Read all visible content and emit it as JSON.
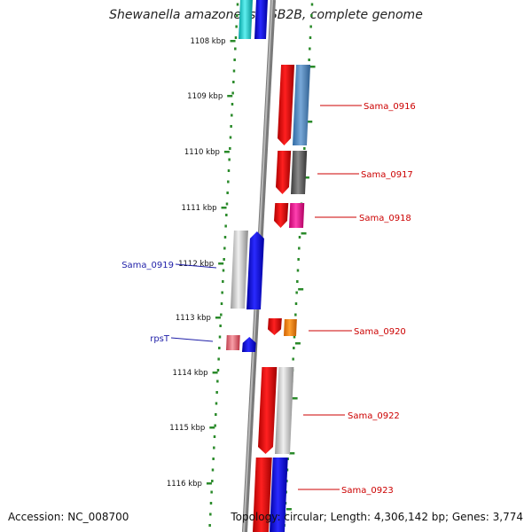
{
  "title": "Shewanella amazonensis SB2B, complete genome",
  "footer": {
    "accession": "Accession: NC_008700",
    "topology": "Topology: circular; Length: 4,306,142 bp; Genes: 3,774"
  },
  "chart_data": {
    "type": "genome-map",
    "scale_labels": [
      "1108 kbp",
      "1109 kbp",
      "1110 kbp",
      "1111 kbp",
      "1112 kbp",
      "1113 kbp",
      "1114 kbp",
      "1115 kbp",
      "1116 kbp"
    ],
    "genes": [
      {
        "label": "Sama_0916",
        "strand": "forward",
        "label_color": "#cc0000"
      },
      {
        "label": "Sama_0917",
        "strand": "forward",
        "label_color": "#cc0000"
      },
      {
        "label": "Sama_0918",
        "strand": "forward",
        "label_color": "#cc0000"
      },
      {
        "label": "Sama_0919",
        "strand": "reverse",
        "label_color": "#1f1fa8"
      },
      {
        "label": "Sama_0920",
        "strand": "forward",
        "label_color": "#cc0000"
      },
      {
        "label": "rpsT",
        "strand": "reverse",
        "label_color": "#1f1fa8"
      },
      {
        "label": "Sama_0922",
        "strand": "forward",
        "label_color": "#cc0000"
      },
      {
        "label": "Sama_0923",
        "strand": "forward",
        "label_color": "#cc0000"
      }
    ],
    "colors": {
      "forward_strand": "#e00000",
      "reverse_strand": "#0000ee",
      "backbone": "#8a8a8a",
      "ticks": "#2a8a2a"
    }
  }
}
